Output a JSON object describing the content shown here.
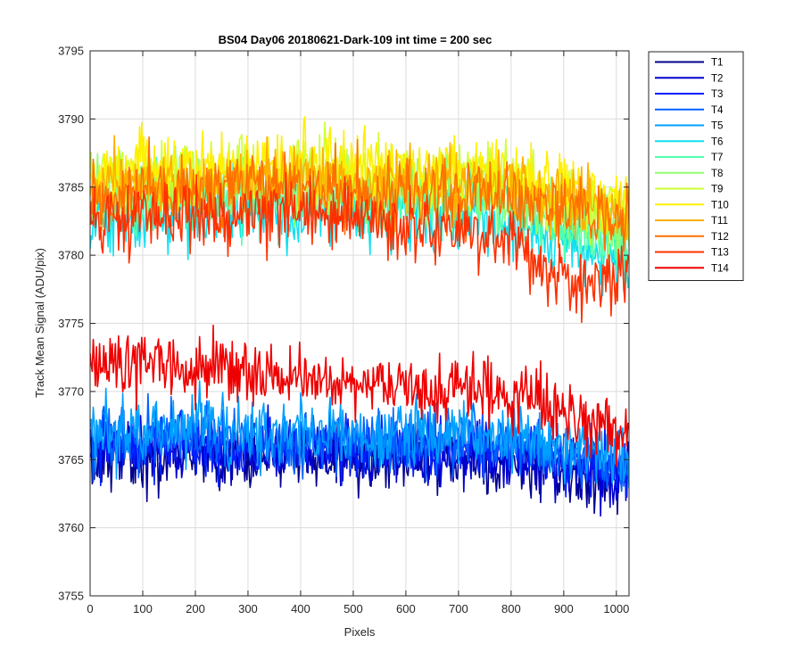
{
  "chart_data": {
    "type": "line",
    "title": "BS04 Day06 20180621-Dark-109 int time = 200 sec",
    "xlabel": "Pixels",
    "ylabel": "Track Mean Signal (ADU/pix)",
    "xlim": [
      0,
      1024
    ],
    "ylim": [
      3755,
      3795
    ],
    "xticks": [
      0,
      100,
      200,
      300,
      400,
      500,
      600,
      700,
      800,
      900,
      1000
    ],
    "yticks": [
      3755,
      3760,
      3765,
      3770,
      3775,
      3780,
      3785,
      3790,
      3795
    ],
    "grid": true,
    "legend_position": "outside-top-right",
    "x_anchors": [
      0,
      100,
      200,
      300,
      400,
      500,
      600,
      700,
      800,
      850,
      900,
      950,
      1000,
      1024
    ],
    "series": [
      {
        "name": "T1",
        "color": "#00008f",
        "noise_amplitude": 1.8,
        "mean_profile": [
          3765.5,
          3765.3,
          3765.4,
          3765.2,
          3765.3,
          3765.2,
          3765.0,
          3765.2,
          3765.0,
          3764.6,
          3764.0,
          3763.8,
          3763.6,
          3763.5
        ]
      },
      {
        "name": "T2",
        "color": "#0000cf",
        "noise_amplitude": 1.8,
        "mean_profile": [
          3765.8,
          3765.6,
          3765.7,
          3765.5,
          3765.6,
          3765.5,
          3765.3,
          3765.5,
          3765.3,
          3764.9,
          3764.3,
          3764.1,
          3763.9,
          3763.8
        ]
      },
      {
        "name": "T3",
        "color": "#0020ff",
        "noise_amplitude": 1.8,
        "mean_profile": [
          3766.3,
          3766.1,
          3766.2,
          3766.0,
          3766.1,
          3766.0,
          3765.8,
          3766.0,
          3765.8,
          3765.4,
          3764.8,
          3764.6,
          3764.4,
          3764.3
        ]
      },
      {
        "name": "T4",
        "color": "#0060ff",
        "noise_amplitude": 1.8,
        "mean_profile": [
          3766.7,
          3766.5,
          3766.6,
          3766.4,
          3766.5,
          3766.4,
          3766.2,
          3766.4,
          3766.2,
          3765.8,
          3765.2,
          3765.0,
          3764.8,
          3764.7
        ]
      },
      {
        "name": "T5",
        "color": "#00a0ff",
        "noise_amplitude": 1.9,
        "mean_profile": [
          3767.2,
          3767.0,
          3767.1,
          3766.9,
          3767.0,
          3766.9,
          3766.7,
          3766.9,
          3766.7,
          3766.3,
          3765.7,
          3765.5,
          3765.3,
          3765.2
        ]
      },
      {
        "name": "T6",
        "color": "#10e0ef",
        "noise_amplitude": 2.0,
        "mean_profile": [
          3782.5,
          3782.8,
          3783.0,
          3783.2,
          3783.3,
          3783.0,
          3782.7,
          3782.9,
          3782.4,
          3781.8,
          3781.2,
          3780.2,
          3779.5,
          3779.2
        ]
      },
      {
        "name": "T7",
        "color": "#50ffaf",
        "noise_amplitude": 2.0,
        "mean_profile": [
          3783.5,
          3783.8,
          3784.0,
          3784.2,
          3784.3,
          3784.0,
          3783.7,
          3783.9,
          3783.4,
          3782.8,
          3782.2,
          3781.5,
          3781.0,
          3780.8
        ]
      },
      {
        "name": "T8",
        "color": "#8fff70",
        "noise_amplitude": 2.0,
        "mean_profile": [
          3784.5,
          3784.8,
          3785.0,
          3785.2,
          3785.3,
          3785.0,
          3784.7,
          3784.9,
          3784.4,
          3783.8,
          3783.2,
          3782.5,
          3782.0,
          3781.8
        ]
      },
      {
        "name": "T9",
        "color": "#cfff30",
        "noise_amplitude": 2.0,
        "mean_profile": [
          3785.5,
          3785.8,
          3786.0,
          3786.2,
          3786.3,
          3786.0,
          3785.8,
          3786.0,
          3785.5,
          3785.0,
          3784.5,
          3784.0,
          3783.5,
          3783.3
        ]
      },
      {
        "name": "T10",
        "color": "#ffef00",
        "noise_amplitude": 2.0,
        "mean_profile": [
          3785.8,
          3786.2,
          3786.4,
          3786.6,
          3786.7,
          3786.4,
          3786.2,
          3786.4,
          3786.0,
          3785.5,
          3785.0,
          3784.5,
          3784.0,
          3783.8
        ]
      },
      {
        "name": "T11",
        "color": "#ffaf00",
        "noise_amplitude": 2.0,
        "mean_profile": [
          3785.0,
          3785.3,
          3785.5,
          3785.7,
          3785.8,
          3785.5,
          3785.3,
          3785.5,
          3785.1,
          3784.6,
          3784.2,
          3783.8,
          3783.4,
          3783.2
        ]
      },
      {
        "name": "T12",
        "color": "#ff7000",
        "noise_amplitude": 2.0,
        "mean_profile": [
          3784.0,
          3784.4,
          3784.6,
          3784.8,
          3784.9,
          3784.6,
          3784.4,
          3784.6,
          3784.2,
          3783.8,
          3783.4,
          3783.0,
          3782.7,
          3782.5
        ]
      },
      {
        "name": "T13",
        "color": "#ff3000",
        "noise_amplitude": 2.0,
        "mean_profile": [
          3782.5,
          3782.8,
          3783.0,
          3783.2,
          3783.3,
          3782.8,
          3782.2,
          3781.8,
          3781.0,
          3779.5,
          3778.0,
          3777.8,
          3778.2,
          3778.2
        ]
      },
      {
        "name": "T14",
        "color": "#ef0000",
        "noise_amplitude": 1.9,
        "mean_profile": [
          3772.3,
          3771.8,
          3771.6,
          3771.2,
          3771.0,
          3770.5,
          3770.3,
          3770.2,
          3769.8,
          3769.2,
          3768.3,
          3767.9,
          3767.6,
          3767.5
        ]
      }
    ]
  }
}
